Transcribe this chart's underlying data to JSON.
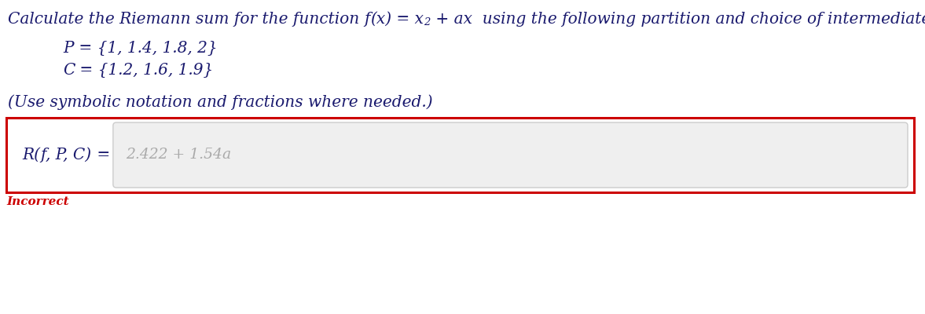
{
  "bg_color": "#ffffff",
  "text_color": "#1a1a6e",
  "incorrect_color": "#cc0000",
  "box_border_color": "#cc0000",
  "input_bg_color": "#efefef",
  "input_border_color": "#cccccc",
  "answer_text_color": "#aaaaaa",
  "line1_pre": "Calculate the Riemann sum for the function ",
  "line1_fx": "f",
  "line1_paren": "(x)",
  "line1_eq": " = x",
  "line1_sup": "2",
  "line1_post": " + ax  using the following partition and choice of intermediate points.",
  "P_letter": "P",
  "P_rest": " = {1, 1.4, 1.8, 2}",
  "C_letter": "C",
  "C_rest": " = {1.2, 1.6, 1.9}",
  "note": "(Use symbolic notation and fractions where needed.)",
  "label_R": "R(",
  "label_f": "f",
  "label_PC": ", P, C)",
  "label_eq": " =",
  "ans_num": "2.422 + 1.54",
  "ans_a": "a",
  "incorrect": "Incorrect",
  "fig_w": 11.77,
  "fig_h": 4.0,
  "dpi": 100
}
